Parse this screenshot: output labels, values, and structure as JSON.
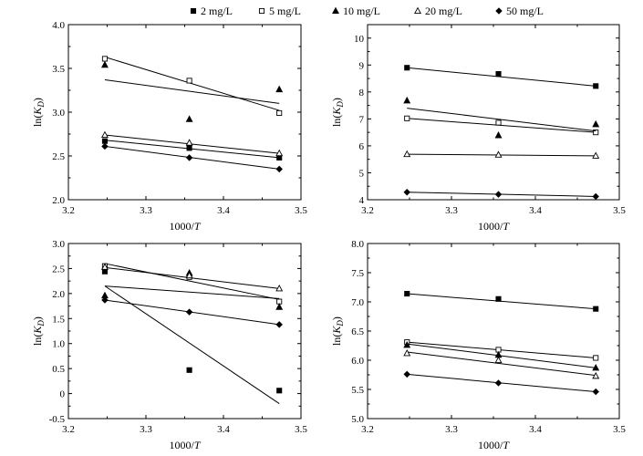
{
  "legend": [
    {
      "name": "2 mg/L",
      "marker": "square-filled"
    },
    {
      "name": "5 mg/L",
      "marker": "square-open"
    },
    {
      "name": "10 mg/L",
      "marker": "triangle-filled"
    },
    {
      "name": "20 mg/L",
      "marker": "triangle-open"
    },
    {
      "name": "50 mg/L",
      "marker": "diamond-filled"
    }
  ],
  "chart_data": [
    {
      "type": "scatter",
      "xlabel": "1000/T",
      "ylabel": "ln(KD)",
      "xlim": [
        3.2,
        3.5
      ],
      "ylim": [
        2.0,
        4.0
      ],
      "xticks": [
        "3.2",
        "3.3",
        "3.4",
        "3.5"
      ],
      "yticks": [
        "2.0",
        "2.5",
        "3.0",
        "3.5",
        "4.0"
      ],
      "series": [
        {
          "name": "2 mg/L",
          "points": [
            [
              3.247,
              2.67
            ],
            [
              3.356,
              2.59
            ],
            [
              3.472,
              2.48
            ]
          ],
          "fit": [
            [
              3.247,
              2.68
            ],
            [
              3.472,
              2.48
            ]
          ]
        },
        {
          "name": "5 mg/L",
          "points": [
            [
              3.247,
              3.61
            ],
            [
              3.356,
              3.36
            ],
            [
              3.472,
              2.99
            ]
          ],
          "fit": [
            [
              3.247,
              3.63
            ],
            [
              3.472,
              3.02
            ]
          ]
        },
        {
          "name": "10 mg/L",
          "points": [
            [
              3.247,
              3.54
            ],
            [
              3.356,
              2.92
            ],
            [
              3.472,
              3.26
            ]
          ],
          "fit": [
            [
              3.247,
              3.37
            ],
            [
              3.472,
              3.1
            ]
          ]
        },
        {
          "name": "20 mg/L",
          "points": [
            [
              3.247,
              2.74
            ],
            [
              3.356,
              2.65
            ],
            [
              3.472,
              2.53
            ]
          ],
          "fit": [
            [
              3.247,
              2.74
            ],
            [
              3.472,
              2.53
            ]
          ]
        },
        {
          "name": "50 mg/L",
          "points": [
            [
              3.247,
              2.61
            ],
            [
              3.356,
              2.48
            ],
            [
              3.472,
              2.35
            ]
          ],
          "fit": [
            [
              3.247,
              2.61
            ],
            [
              3.472,
              2.35
            ]
          ]
        }
      ]
    },
    {
      "type": "scatter",
      "xlabel": "1000/T",
      "ylabel": "ln(KD)",
      "xlim": [
        3.2,
        3.5
      ],
      "ylim": [
        4,
        10.5
      ],
      "xticks": [
        "3.2",
        "3.3",
        "3.4",
        "3.5"
      ],
      "yticks": [
        "4",
        "5",
        "6",
        "7",
        "8",
        "9",
        "10"
      ],
      "series": [
        {
          "name": "2 mg/L",
          "points": [
            [
              3.247,
              8.9
            ],
            [
              3.356,
              8.67
            ],
            [
              3.472,
              8.22
            ]
          ],
          "fit": [
            [
              3.247,
              8.9
            ],
            [
              3.472,
              8.22
            ]
          ]
        },
        {
          "name": "5 mg/L",
          "points": [
            [
              3.247,
              7.02
            ],
            [
              3.356,
              6.86
            ],
            [
              3.472,
              6.5
            ]
          ],
          "fit": [
            [
              3.247,
              7.02
            ],
            [
              3.472,
              6.5
            ]
          ]
        },
        {
          "name": "10 mg/L",
          "points": [
            [
              3.247,
              7.68
            ],
            [
              3.356,
              6.39
            ],
            [
              3.472,
              6.8
            ]
          ],
          "fit": [
            [
              3.247,
              7.4
            ],
            [
              3.472,
              6.55
            ]
          ]
        },
        {
          "name": "20 mg/L",
          "points": [
            [
              3.247,
              5.69
            ],
            [
              3.356,
              5.67
            ],
            [
              3.472,
              5.63
            ]
          ],
          "fit": [
            [
              3.247,
              5.69
            ],
            [
              3.472,
              5.63
            ]
          ]
        },
        {
          "name": "50 mg/L",
          "points": [
            [
              3.247,
              4.28
            ],
            [
              3.356,
              4.2
            ],
            [
              3.472,
              4.12
            ]
          ],
          "fit": [
            [
              3.247,
              4.28
            ],
            [
              3.472,
              4.12
            ]
          ]
        }
      ]
    },
    {
      "type": "scatter",
      "xlabel": "1000/T",
      "ylabel": "ln(KD)",
      "xlim": [
        3.2,
        3.5
      ],
      "ylim": [
        -0.5,
        3.0
      ],
      "xticks": [
        "3.2",
        "3.3",
        "3.4",
        "3.5"
      ],
      "yticks": [
        "-0.5",
        "0",
        "0.5",
        "1.0",
        "1.5",
        "2.0",
        "2.5",
        "3.0"
      ],
      "series": [
        {
          "name": "2 mg/L",
          "points": [
            [
              3.247,
              2.44
            ],
            [
              3.356,
              0.47
            ],
            [
              3.472,
              0.06
            ]
          ],
          "fit": [
            [
              3.247,
              2.15
            ],
            [
              3.472,
              -0.2
            ]
          ]
        },
        {
          "name": "5 mg/L",
          "points": [
            [
              3.247,
              2.55
            ],
            [
              3.356,
              2.33
            ],
            [
              3.472,
              1.84
            ]
          ],
          "fit": [
            [
              3.247,
              2.6
            ],
            [
              3.472,
              1.88
            ]
          ]
        },
        {
          "name": "10 mg/L",
          "points": [
            [
              3.247,
              1.96
            ],
            [
              3.356,
              2.41
            ],
            [
              3.472,
              1.73
            ]
          ],
          "fit": [
            [
              3.247,
              2.15
            ],
            [
              3.472,
              1.9
            ]
          ]
        },
        {
          "name": "20 mg/L",
          "points": [
            [
              3.247,
              2.53
            ],
            [
              3.356,
              2.36
            ],
            [
              3.472,
              2.1
            ]
          ],
          "fit": [
            [
              3.247,
              2.52
            ],
            [
              3.472,
              2.1
            ]
          ]
        },
        {
          "name": "50 mg/L",
          "points": [
            [
              3.247,
              1.87
            ],
            [
              3.356,
              1.63
            ],
            [
              3.472,
              1.38
            ]
          ],
          "fit": [
            [
              3.247,
              1.87
            ],
            [
              3.472,
              1.38
            ]
          ]
        }
      ]
    },
    {
      "type": "scatter",
      "xlabel": "1000/T",
      "ylabel": "ln(KD)",
      "xlim": [
        3.2,
        3.5
      ],
      "ylim": [
        5.0,
        8.0
      ],
      "xticks": [
        "3.2",
        "3.3",
        "3.4",
        "3.5"
      ],
      "yticks": [
        "5.0",
        "5.5",
        "6.0",
        "6.5",
        "7.0",
        "7.5",
        "8.0"
      ],
      "series": [
        {
          "name": "2 mg/L",
          "points": [
            [
              3.247,
              7.14
            ],
            [
              3.356,
              7.05
            ],
            [
              3.472,
              6.88
            ]
          ],
          "fit": [
            [
              3.247,
              7.14
            ],
            [
              3.472,
              6.88
            ]
          ]
        },
        {
          "name": "5 mg/L",
          "points": [
            [
              3.247,
              6.31
            ],
            [
              3.356,
              6.18
            ],
            [
              3.472,
              6.04
            ]
          ],
          "fit": [
            [
              3.247,
              6.31
            ],
            [
              3.472,
              6.04
            ]
          ]
        },
        {
          "name": "10 mg/L",
          "points": [
            [
              3.247,
              6.26
            ],
            [
              3.356,
              6.09
            ],
            [
              3.472,
              5.87
            ]
          ],
          "fit": [
            [
              3.247,
              6.28
            ],
            [
              3.472,
              5.87
            ]
          ]
        },
        {
          "name": "20 mg/L",
          "points": [
            [
              3.247,
              6.12
            ],
            [
              3.356,
              6.0
            ],
            [
              3.472,
              5.73
            ]
          ],
          "fit": [
            [
              3.247,
              6.14
            ],
            [
              3.472,
              5.74
            ]
          ]
        },
        {
          "name": "50 mg/L",
          "points": [
            [
              3.247,
              5.76
            ],
            [
              3.356,
              5.61
            ],
            [
              3.472,
              5.46
            ]
          ],
          "fit": [
            [
              3.247,
              5.76
            ],
            [
              3.472,
              5.46
            ]
          ]
        }
      ]
    }
  ]
}
